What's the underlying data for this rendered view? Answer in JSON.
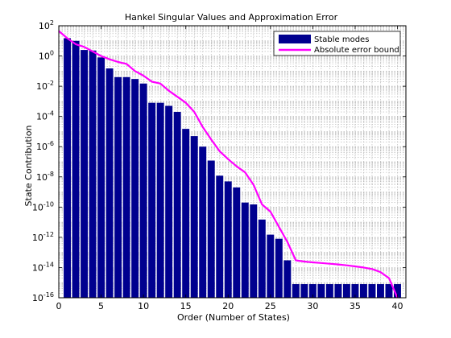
{
  "chart_data": {
    "type": "bar",
    "title": "Hankel Singular Values and Approximation Error",
    "xlabel": "Order (Number of States)",
    "ylabel": "State Contribution",
    "xlim": [
      0,
      41
    ],
    "ylim_exponents": [
      -16,
      2
    ],
    "yscale": "log",
    "grid": true,
    "legend_position": "top-right",
    "x_ticks": [
      0,
      5,
      10,
      15,
      20,
      25,
      30,
      35,
      40
    ],
    "y_tick_base": "10",
    "y_tick_exponents": [
      2,
      0,
      -2,
      -4,
      -6,
      -8,
      -10,
      -12,
      -14,
      -16
    ],
    "series": [
      {
        "name": "Stable modes",
        "kind": "bar",
        "color": "#00008f",
        "x": [
          1,
          2,
          3,
          4,
          5,
          6,
          7,
          8,
          9,
          10,
          11,
          12,
          13,
          14,
          15,
          16,
          17,
          18,
          19,
          20,
          21,
          22,
          23,
          24,
          25,
          26,
          27,
          28,
          29,
          30,
          31,
          32,
          33,
          34,
          35,
          36,
          37,
          38,
          39,
          40
        ],
        "values": [
          15,
          10,
          2.5,
          2.3,
          0.8,
          0.15,
          0.04,
          0.04,
          0.03,
          0.015,
          0.0008,
          0.0008,
          0.0005,
          0.0002,
          1.5e-05,
          5e-06,
          1e-06,
          1.2e-07,
          1.2e-08,
          5e-09,
          2e-09,
          2e-10,
          1.5e-10,
          1.5e-11,
          1.5e-12,
          8e-13,
          3e-14,
          8e-16,
          8e-16,
          8e-16,
          8e-16,
          8e-16,
          8e-16,
          8e-16,
          8e-16,
          8e-16,
          8e-16,
          8e-16,
          8e-16,
          8e-16
        ]
      },
      {
        "name": "Absolute error bound",
        "kind": "line",
        "color": "#ff00ff",
        "x": [
          0,
          1,
          2,
          3,
          4,
          5,
          6,
          7,
          8,
          9,
          10,
          11,
          12,
          13,
          14,
          15,
          16,
          17,
          18,
          19,
          20,
          21,
          22,
          23,
          24,
          25,
          26,
          27,
          28,
          29,
          30,
          31,
          32,
          33,
          34,
          35,
          36,
          37,
          38,
          39,
          40
        ],
        "values": [
          45,
          15,
          6,
          4,
          2,
          1,
          0.6,
          0.4,
          0.3,
          0.1,
          0.05,
          0.02,
          0.015,
          0.005,
          0.002,
          0.0008,
          0.0002,
          2e-05,
          3e-06,
          5e-07,
          1.5e-07,
          5e-08,
          2e-08,
          3e-09,
          1.5e-10,
          5e-11,
          5e-12,
          5e-13,
          3e-14,
          2.5e-14,
          2.2e-14,
          2e-14,
          1.8e-14,
          1.6e-14,
          1.4e-14,
          1.2e-14,
          1e-14,
          8e-15,
          5e-15,
          2e-15,
          1e-16
        ]
      }
    ]
  }
}
